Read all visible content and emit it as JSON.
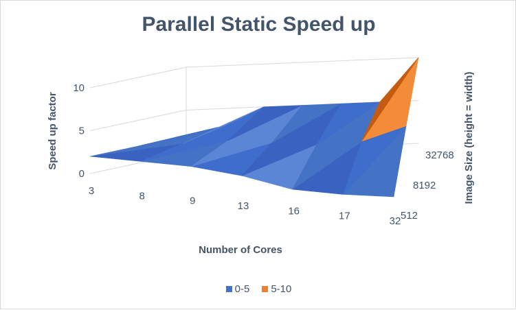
{
  "chart_data": {
    "type": "surface-3d",
    "title": "Parallel Static Speed up",
    "xlabel": "Number of Cores",
    "ylabel": "Speed up factor",
    "zlabel": "Image Size (height = width)",
    "x_categories": [
      "3",
      "8",
      "9",
      "13",
      "16",
      "17",
      "32"
    ],
    "z_categories": [
      "512",
      "8192",
      "32768"
    ],
    "y_ticks": [
      "0",
      "5",
      "10"
    ],
    "ylim": [
      0,
      10
    ],
    "bands": [
      {
        "name": "0-5",
        "range": [
          0,
          5
        ],
        "color": "#4472c4"
      },
      {
        "name": "5-10",
        "range": [
          5,
          10
        ],
        "color": "#ed7d31"
      }
    ],
    "series": [
      {
        "name": "512",
        "values": [
          2.0,
          2.0,
          2.0,
          1.5,
          0.5,
          0.5,
          0.8
        ]
      },
      {
        "name": "8192",
        "values": [
          2.0,
          2.5,
          3.0,
          3.0,
          3.0,
          3.5,
          5.5
        ]
      },
      {
        "name": "32768",
        "values": [
          2.0,
          3.0,
          5.0,
          5.0,
          5.0,
          5.0,
          10.0
        ]
      }
    ],
    "grid": true,
    "legend_position": "bottom"
  }
}
